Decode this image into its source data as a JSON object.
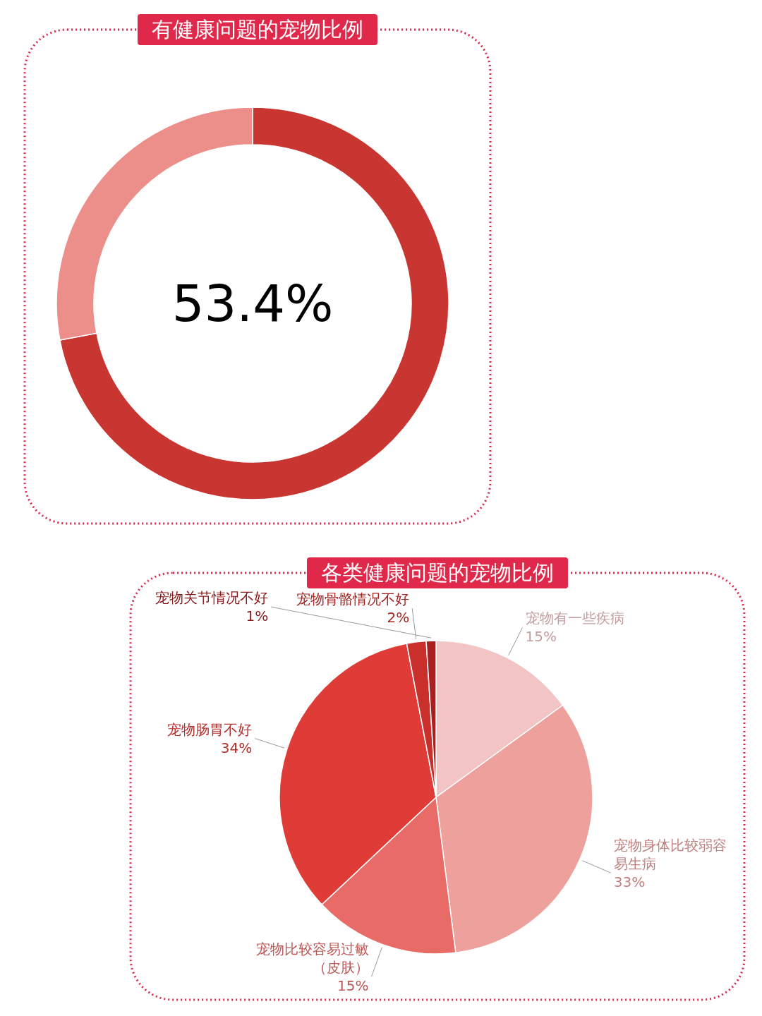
{
  "chart_data": [
    {
      "type": "donut",
      "title": "有健康问题的宠物比例",
      "categories": [
        null,
        null
      ],
      "values": [
        72,
        28
      ],
      "colors": [
        "#c93632",
        "#ec8f8a"
      ],
      "annotations": [
        "53.4%"
      ]
    },
    {
      "type": "pie",
      "title": "各类健康问题的宠物比例",
      "categories": [
        "宠物有一些疾病",
        "宠物身体比较弱容易生病",
        "宠物比较容易过敏（皮肤）",
        "宠物肠胃不好",
        "宠物骨骼情况不好",
        "宠物关节情况不好"
      ],
      "values": [
        15,
        33,
        15,
        34,
        2,
        1
      ],
      "colors": [
        "#f2c4c4",
        "#eda09c",
        "#e86b68",
        "#df3c38",
        "#c9302c",
        "#a82020"
      ],
      "value_labels": [
        "15%",
        "33%",
        "15%",
        "34%",
        "2%",
        "1%"
      ]
    }
  ]
}
